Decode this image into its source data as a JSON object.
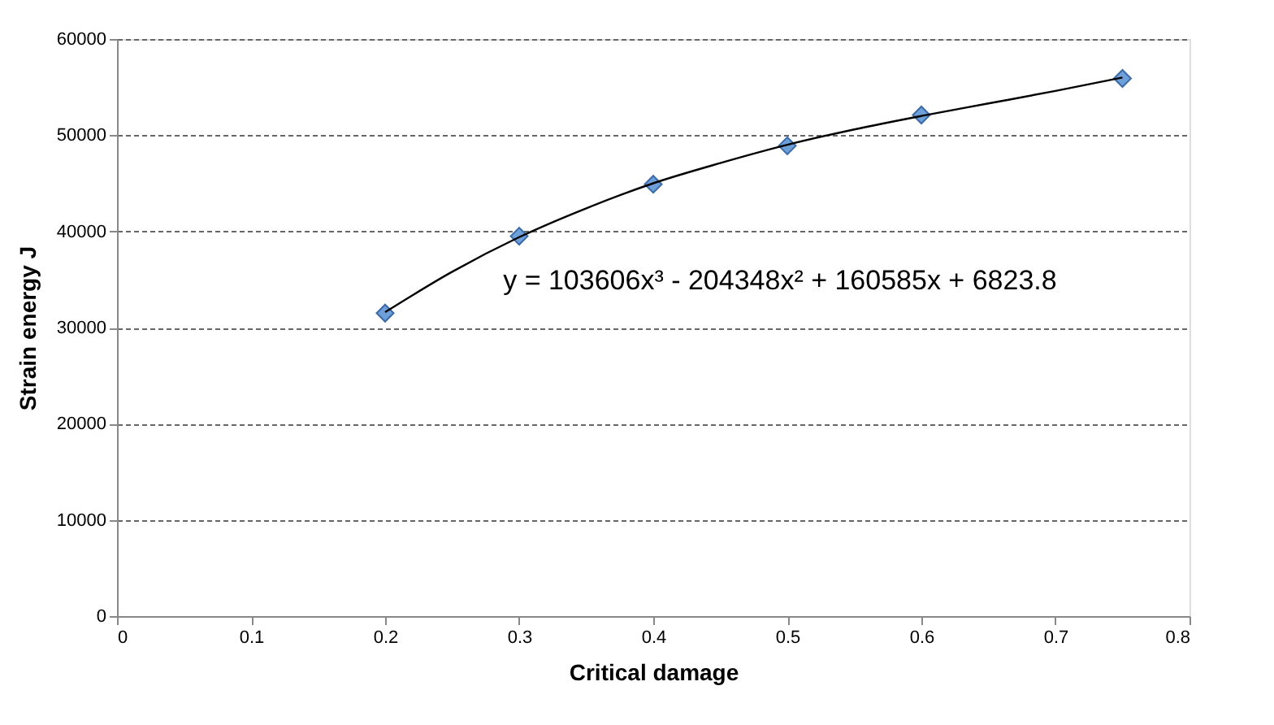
{
  "chart_data": {
    "type": "scatter",
    "xlabel": "Critical damage",
    "ylabel": "Strain energy J",
    "xlim": [
      0,
      0.8
    ],
    "xticks": [
      0,
      0.1,
      0.2,
      0.3,
      0.4,
      0.5,
      0.6,
      0.7,
      0.8
    ],
    "ylim": [
      0,
      60000
    ],
    "yticks": [
      0,
      10000,
      20000,
      30000,
      40000,
      50000,
      60000
    ],
    "grid": "y",
    "annotations": [
      "y = 103606x³ - 204348x² + 160585x + 6823.8"
    ],
    "series": [
      {
        "type": "scatter",
        "marker": "diamond",
        "color": "#6f9fd8",
        "x": [
          0.2,
          0.3,
          0.4,
          0.5,
          0.6,
          0.75
        ],
        "values": [
          31500,
          39500,
          44900,
          48900,
          52100,
          55900
        ]
      },
      {
        "type": "line",
        "marker": "none",
        "color": "#000000",
        "x": [
          0.2,
          0.25,
          0.3,
          0.35,
          0.4,
          0.45,
          0.5,
          0.55,
          0.6,
          0.65,
          0.7,
          0.75
        ],
        "values": [
          31600,
          35800,
          39400,
          42400,
          45000,
          47100,
          49000,
          50600,
          52000,
          53300,
          54600,
          56000
        ]
      }
    ]
  }
}
